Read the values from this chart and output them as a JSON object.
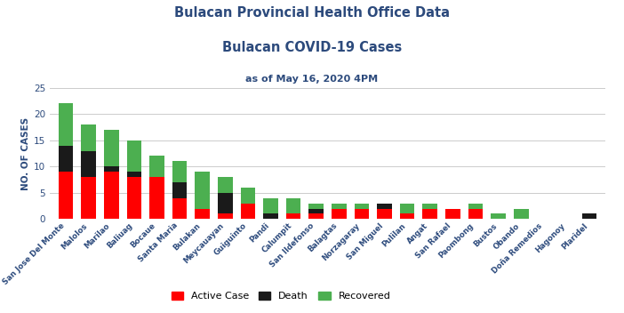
{
  "categories": [
    "San Jose Del Monte",
    "Malolos",
    "Marilao",
    "Baliuag",
    "Bocaue",
    "Santa Maria",
    "Bulakan",
    "Meycauayan",
    "Guiguinto",
    "Pandi",
    "Calumpit",
    "San Ildefonso",
    "Balagtas",
    "Norzagaray",
    "San Miguel",
    "Pulilan",
    "Angat",
    "San Rafael",
    "Paombong",
    "Bustos",
    "Obando",
    "Doña Remedios",
    "Hagonoy",
    "Plaridel"
  ],
  "active": [
    9,
    8,
    9,
    8,
    8,
    4,
    2,
    1,
    3,
    0,
    1,
    1,
    2,
    2,
    2,
    1,
    2,
    2,
    2,
    0,
    0,
    0,
    0,
    0
  ],
  "death": [
    5,
    5,
    1,
    1,
    0,
    3,
    0,
    4,
    0,
    1,
    0,
    1,
    0,
    0,
    1,
    0,
    0,
    0,
    0,
    0,
    0,
    0,
    0,
    1
  ],
  "recovered": [
    8,
    5,
    7,
    6,
    4,
    4,
    7,
    3,
    3,
    3,
    3,
    1,
    1,
    1,
    0,
    2,
    1,
    0,
    1,
    1,
    2,
    0,
    0,
    0
  ],
  "color_active": "#ff0000",
  "color_death": "#1a1a1a",
  "color_recovered": "#4caf50",
  "title1": "Bulacan Provincial Health Office Data",
  "title2": "Bulacan COVID-19 Cases",
  "subtitle": "as of May 16, 2020 4PM",
  "ylabel": "NO. OF CASES",
  "ylim": [
    0,
    25
  ],
  "yticks": [
    0,
    5,
    10,
    15,
    20,
    25
  ],
  "title_color": "#2c4a7c",
  "subtitle_color": "#2c4a7c",
  "ylabel_color": "#2c4a7c",
  "tick_color": "#2c4a7c",
  "bg_color": "#ffffff",
  "grid_color": "#cccccc",
  "bar_width": 0.65
}
